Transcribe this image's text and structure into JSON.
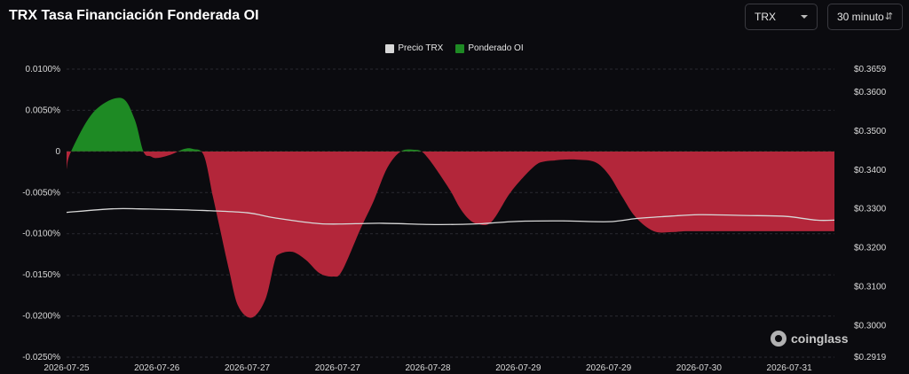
{
  "header": {
    "title": "TRX Tasa Financiación Fonderada OI",
    "coin_select": {
      "value": "TRX"
    },
    "interval_select": {
      "value": "30 minuto"
    }
  },
  "watermark": {
    "text": "coinglass"
  },
  "colors": {
    "positive": "#1e8a24",
    "negative": "#b3263a",
    "price": "#d8d8d8",
    "grid": "#2a2a30",
    "background": "#0b0b0f"
  },
  "chart_data": {
    "type": "area",
    "legend": [
      {
        "name": "Precio TRX",
        "color": "#d8d8d8"
      },
      {
        "name": "Ponderado OI",
        "color": "#1e8a24"
      }
    ],
    "x_labels": [
      "2026-07-25",
      "2026-07-26",
      "2026-07-27",
      "2026-07-27",
      "2026-07-28",
      "2026-07-29",
      "2026-07-29",
      "2026-07-30",
      "2026-07-31"
    ],
    "y_left": {
      "ticks": [
        "0.0100%",
        "0.0050%",
        "0",
        "-0.0050%",
        "-0.0100%",
        "-0.0150%",
        "-0.0200%",
        "-0.0250%"
      ],
      "tick_values": [
        0.01,
        0.005,
        0,
        -0.005,
        -0.01,
        -0.015,
        -0.02,
        -0.025
      ],
      "range": [
        -0.025,
        0.01
      ]
    },
    "y_right": {
      "ticks": [
        "$0.3659",
        "$0.3600",
        "$0.3500",
        "$0.3400",
        "$0.3300",
        "$0.3200",
        "$0.3100",
        "$0.3000",
        "$0.2919"
      ],
      "tick_values": [
        0.3659,
        0.36,
        0.35,
        0.34,
        0.33,
        0.32,
        0.31,
        0.3,
        0.2919
      ],
      "range": [
        0.2919,
        0.3659
      ]
    },
    "grid": true,
    "legend_position": "top-center",
    "series": [
      {
        "name": "Ponderado OI",
        "x": [
          0,
          0.05,
          0.3,
          0.6,
          0.75,
          0.85,
          0.93,
          1.0,
          1.15,
          1.3,
          1.4,
          1.52,
          1.62,
          1.7,
          1.8,
          1.9,
          2.05,
          2.2,
          2.3,
          2.35,
          2.5,
          2.65,
          2.8,
          2.95,
          3.05,
          3.25,
          3.4,
          3.55,
          3.7,
          3.85,
          3.93,
          4.0,
          4.1,
          4.25,
          4.35,
          4.45,
          4.55,
          4.7,
          4.9,
          5.05,
          5.2,
          5.3,
          5.4,
          5.5,
          5.65,
          5.85,
          6.0,
          6.15,
          6.3,
          6.5,
          6.7,
          6.85,
          7.0,
          7.15,
          7.3,
          7.45,
          7.6,
          7.75,
          7.85,
          7.95,
          8.1,
          8.35,
          8.5
        ],
        "values": [
          -0.0022,
          0,
          0.0048,
          0.0065,
          0.004,
          0,
          -0.0006,
          -0.0008,
          -0.0004,
          0.0003,
          0.0003,
          -0.0005,
          -0.0055,
          -0.0095,
          -0.0145,
          -0.0188,
          -0.0202,
          -0.018,
          -0.0135,
          -0.0125,
          -0.0122,
          -0.0132,
          -0.0148,
          -0.0152,
          -0.0145,
          -0.0095,
          -0.006,
          -0.002,
          0,
          0.0002,
          0,
          -0.0008,
          -0.0023,
          -0.0048,
          -0.0068,
          -0.0082,
          -0.0088,
          -0.0086,
          -0.0052,
          -0.0032,
          -0.0016,
          -0.0012,
          -0.0011,
          -0.001,
          -0.001,
          -0.0013,
          -0.0028,
          -0.0055,
          -0.008,
          -0.0097,
          -0.0098,
          -0.0097,
          -0.0097,
          -0.0097,
          -0.0097,
          -0.0097,
          -0.0097,
          -0.0097,
          -0.0097,
          -0.0097,
          -0.0097,
          -0.0097,
          -0.0097
        ]
      },
      {
        "name": "Precio TRX",
        "x": [
          0,
          0.5,
          0.8,
          1.0,
          1.5,
          2.0,
          2.3,
          2.8,
          3.2,
          3.5,
          4.0,
          4.3,
          4.6,
          5.0,
          5.5,
          6.0,
          6.3,
          6.6,
          7.0,
          7.5,
          7.8,
          8.0,
          8.3,
          8.5
        ],
        "values": [
          0.3291,
          0.33,
          0.33,
          0.3299,
          0.3296,
          0.329,
          0.3277,
          0.3262,
          0.3262,
          0.3263,
          0.326,
          0.326,
          0.3262,
          0.3268,
          0.3269,
          0.3267,
          0.3275,
          0.328,
          0.3285,
          0.3283,
          0.3282,
          0.328,
          0.3271,
          0.3271
        ]
      }
    ]
  }
}
